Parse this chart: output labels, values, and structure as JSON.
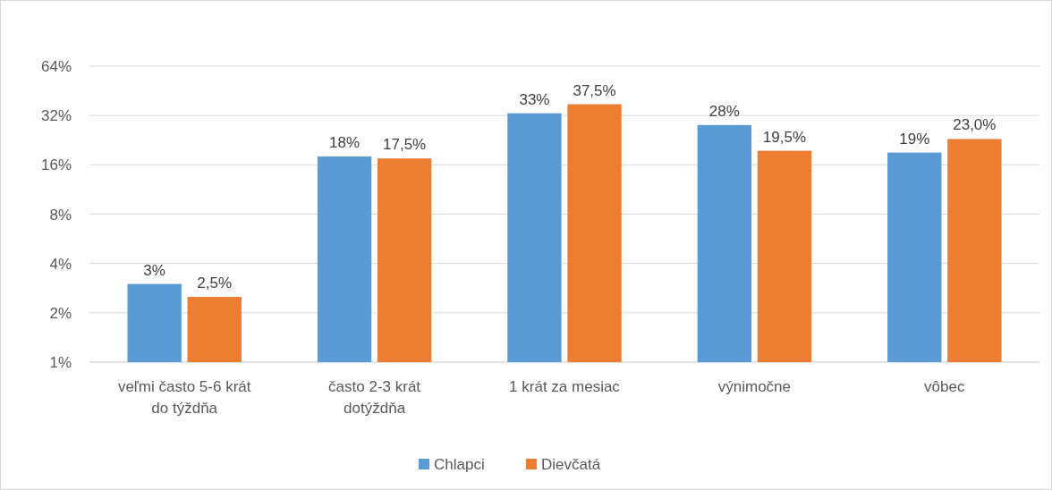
{
  "chart_data": {
    "type": "bar",
    "categories": [
      "veľmi často 5-6 krát do týždňa",
      "často 2-3 krát dotýždňa",
      "1 krát za mesiac",
      "výnimočne",
      "vôbec"
    ],
    "series": [
      {
        "name": "Chlapci",
        "color": "#5b9bd5",
        "values": [
          3,
          18,
          33,
          28,
          19
        ],
        "value_labels": [
          "3%",
          "18%",
          "33%",
          "28%",
          "19%"
        ]
      },
      {
        "name": "Dievčatá",
        "color": "#ed7d31",
        "values": [
          2.5,
          17.5,
          37.5,
          19.5,
          23
        ],
        "value_labels": [
          "2,5%",
          "17,5%",
          "37,5%",
          "19,5%",
          "23,0%"
        ]
      }
    ],
    "log": true,
    "ylim": [
      1,
      64
    ],
    "yticks": [
      {
        "value": 1,
        "label": "1%"
      },
      {
        "value": 2,
        "label": "2%"
      },
      {
        "value": 4,
        "label": "4%"
      },
      {
        "value": 8,
        "label": "8%"
      },
      {
        "value": 16,
        "label": "16%"
      },
      {
        "value": 32,
        "label": "32%"
      },
      {
        "value": 64,
        "label": "64%"
      }
    ],
    "grid": "y",
    "legend": "bottom"
  }
}
